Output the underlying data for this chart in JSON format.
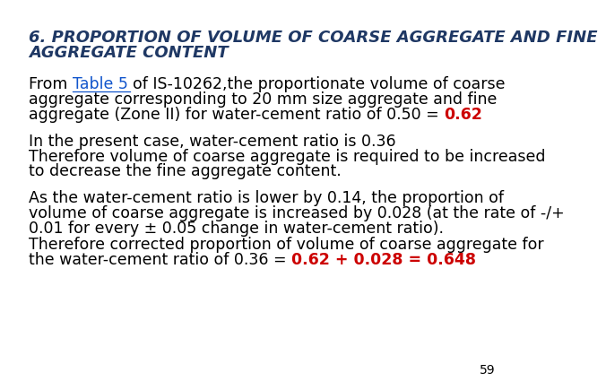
{
  "title_line1": "6. PROPORTION OF VOLUME OF COARSE AGGREGATE AND FINE",
  "title_line2": "AGGREGATE CONTENT",
  "title_color": "#1F3864",
  "body_color": "#000000",
  "highlight_color": "#CC0000",
  "link_color": "#1155CC",
  "background_color": "#FFFFFF",
  "page_number": "59",
  "para1_part1": "From ",
  "para1_link": "Table 5 ",
  "para1_rest": "of IS-10262,the proportionate volume of coarse",
  "para1_line2": "aggregate corresponding to 20 mm size aggregate and fine",
  "para1_line3_before": "aggregate (Zone II) for water-cement ratio of 0.50 = ",
  "para1_highlight": "0.62",
  "para2_line1": "In the present case, water-cement ratio is 0.36",
  "para2_line2": "Therefore volume of coarse aggregate is required to be increased",
  "para2_line3": "to decrease the fine aggregate content.",
  "para3_line1": "As the water-cement ratio is lower by 0.14, the proportion of",
  "para3_line2": "volume of coarse aggregate is increased by 0.028 (at the rate of -/+",
  "para3_line3": "0.01 for every ± 0.05 change in water-cement ratio).",
  "para4_line1": "Therefore corrected proportion of volume of coarse aggregate for",
  "para4_line2_before": "the water-cement ratio of 0.36 = ",
  "para4_highlight": "0.62 + 0.028 = 0.648",
  "font_size_title": 13,
  "font_size_body": 12.5
}
